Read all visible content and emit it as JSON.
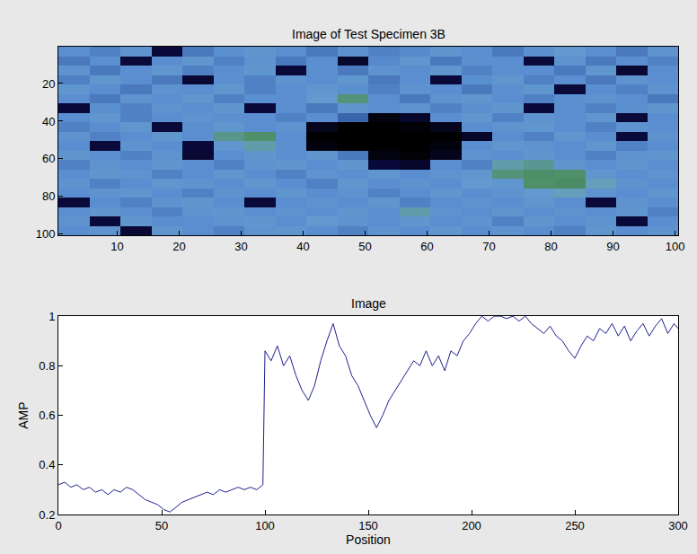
{
  "chart_data": [
    {
      "type": "heatmap",
      "title": "Image of Test Specimen 3B",
      "x": [
        3,
        8,
        13,
        18,
        23,
        28,
        33,
        38,
        43,
        48,
        53,
        58,
        63,
        68,
        73,
        78,
        83,
        88,
        93,
        98
      ],
      "y": [
        3,
        8,
        13,
        18,
        23,
        28,
        33,
        38,
        43,
        48,
        53,
        58,
        63,
        68,
        73,
        78,
        83,
        88,
        93,
        98
      ],
      "z": [
        [
          0.55,
          0.52,
          0.58,
          0.2,
          0.5,
          0.56,
          0.6,
          0.55,
          0.5,
          0.57,
          0.52,
          0.54,
          0.6,
          0.55,
          0.5,
          0.56,
          0.62,
          0.55,
          0.5,
          0.58
        ],
        [
          0.5,
          0.56,
          0.2,
          0.55,
          0.6,
          0.52,
          0.58,
          0.5,
          0.55,
          0.15,
          0.54,
          0.6,
          0.5,
          0.56,
          0.55,
          0.2,
          0.58,
          0.5,
          0.56,
          0.52
        ],
        [
          0.58,
          0.5,
          0.55,
          0.6,
          0.52,
          0.55,
          0.6,
          0.2,
          0.56,
          0.5,
          0.58,
          0.55,
          0.6,
          0.52,
          0.56,
          0.55,
          0.5,
          0.6,
          0.18,
          0.55
        ],
        [
          0.52,
          0.6,
          0.55,
          0.5,
          0.18,
          0.56,
          0.52,
          0.58,
          0.55,
          0.6,
          0.5,
          0.55,
          0.2,
          0.56,
          0.6,
          0.52,
          0.55,
          0.5,
          0.58,
          0.55
        ],
        [
          0.6,
          0.55,
          0.5,
          0.58,
          0.55,
          0.6,
          0.52,
          0.55,
          0.6,
          0.56,
          0.52,
          0.58,
          0.55,
          0.5,
          0.56,
          0.6,
          0.2,
          0.55,
          0.52,
          0.58
        ],
        [
          0.55,
          0.5,
          0.58,
          0.55,
          0.6,
          0.52,
          0.56,
          0.55,
          0.62,
          0.78,
          0.55,
          0.5,
          0.58,
          0.6,
          0.55,
          0.52,
          0.56,
          0.58,
          0.55,
          0.5
        ],
        [
          0.2,
          0.56,
          0.52,
          0.58,
          0.55,
          0.6,
          0.2,
          0.55,
          0.5,
          0.6,
          0.55,
          0.58,
          0.52,
          0.56,
          0.6,
          0.2,
          0.55,
          0.52,
          0.56,
          0.6
        ],
        [
          0.55,
          0.6,
          0.52,
          0.55,
          0.58,
          0.56,
          0.55,
          0.52,
          0.55,
          0.45,
          0.05,
          0.15,
          0.55,
          0.6,
          0.52,
          0.58,
          0.55,
          0.6,
          0.2,
          0.55
        ],
        [
          0.52,
          0.55,
          0.6,
          0.2,
          0.56,
          0.6,
          0.55,
          0.58,
          0.1,
          0.0,
          0.0,
          0.02,
          0.1,
          0.55,
          0.58,
          0.6,
          0.55,
          0.52,
          0.58,
          0.55
        ],
        [
          0.58,
          0.52,
          0.55,
          0.6,
          0.55,
          0.76,
          0.8,
          0.55,
          0.0,
          0.0,
          0.0,
          0.0,
          0.0,
          0.15,
          0.55,
          0.52,
          0.6,
          0.55,
          0.2,
          0.58
        ],
        [
          0.55,
          0.2,
          0.58,
          0.55,
          0.2,
          0.6,
          0.72,
          0.56,
          0.05,
          0.0,
          0.0,
          0.0,
          0.05,
          0.55,
          0.6,
          0.58,
          0.55,
          0.6,
          0.52,
          0.55
        ],
        [
          0.6,
          0.55,
          0.52,
          0.58,
          0.18,
          0.55,
          0.6,
          0.55,
          0.6,
          0.5,
          0.05,
          0.02,
          0.1,
          0.58,
          0.55,
          0.6,
          0.55,
          0.52,
          0.58,
          0.6
        ],
        [
          0.52,
          0.58,
          0.55,
          0.6,
          0.55,
          0.52,
          0.58,
          0.6,
          0.55,
          0.6,
          0.2,
          0.15,
          0.55,
          0.52,
          0.72,
          0.75,
          0.6,
          0.55,
          0.6,
          0.55
        ],
        [
          0.55,
          0.6,
          0.58,
          0.52,
          0.55,
          0.6,
          0.55,
          0.52,
          0.58,
          0.55,
          0.6,
          0.55,
          0.58,
          0.6,
          0.78,
          0.82,
          0.8,
          0.6,
          0.55,
          0.58
        ],
        [
          0.58,
          0.52,
          0.55,
          0.6,
          0.58,
          0.55,
          0.6,
          0.55,
          0.52,
          0.6,
          0.55,
          0.58,
          0.55,
          0.62,
          0.6,
          0.8,
          0.84,
          0.7,
          0.58,
          0.55
        ],
        [
          0.55,
          0.58,
          0.6,
          0.55,
          0.52,
          0.58,
          0.55,
          0.6,
          0.55,
          0.58,
          0.52,
          0.55,
          0.6,
          0.55,
          0.58,
          0.62,
          0.7,
          0.58,
          0.55,
          0.6
        ],
        [
          0.2,
          0.55,
          0.52,
          0.58,
          0.6,
          0.55,
          0.2,
          0.55,
          0.58,
          0.55,
          0.6,
          0.52,
          0.55,
          0.58,
          0.55,
          0.6,
          0.55,
          0.2,
          0.58,
          0.55
        ],
        [
          0.55,
          0.6,
          0.55,
          0.52,
          0.58,
          0.6,
          0.55,
          0.58,
          0.55,
          0.6,
          0.55,
          0.72,
          0.58,
          0.55,
          0.6,
          0.55,
          0.58,
          0.55,
          0.6,
          0.52
        ],
        [
          0.58,
          0.2,
          0.6,
          0.55,
          0.55,
          0.58,
          0.6,
          0.55,
          0.62,
          0.58,
          0.55,
          0.6,
          0.55,
          0.58,
          0.52,
          0.6,
          0.55,
          0.58,
          0.2,
          0.55
        ],
        [
          0.55,
          0.58,
          0.18,
          0.6,
          0.55,
          0.52,
          0.58,
          0.6,
          0.55,
          0.52,
          0.58,
          0.55,
          0.6,
          0.55,
          0.58,
          0.55,
          0.52,
          0.6,
          0.55,
          0.58
        ]
      ],
      "zlim": [
        0,
        1
      ],
      "xlim": [
        0.5,
        100.5
      ],
      "ylim": [
        0.5,
        100.5
      ],
      "xticks": [
        10,
        20,
        30,
        40,
        50,
        60,
        70,
        80,
        90,
        100
      ],
      "yticks": [
        20,
        40,
        60,
        80,
        100
      ]
    },
    {
      "type": "line",
      "title": "Image",
      "x_label": "Position",
      "y_label": "AMP",
      "color": "#1f1f8f",
      "x": [
        0,
        3,
        6,
        9,
        12,
        15,
        18,
        21,
        24,
        27,
        30,
        33,
        36,
        39,
        42,
        45,
        48,
        51,
        54,
        57,
        60,
        63,
        66,
        69,
        72,
        75,
        78,
        81,
        84,
        87,
        90,
        93,
        96,
        99,
        100,
        103,
        106,
        109,
        112,
        115,
        118,
        121,
        124,
        127,
        130,
        133,
        136,
        139,
        142,
        145,
        148,
        151,
        154,
        157,
        160,
        163,
        166,
        169,
        172,
        175,
        178,
        181,
        184,
        187,
        190,
        193,
        196,
        199,
        202,
        205,
        208,
        211,
        214,
        217,
        220,
        223,
        226,
        229,
        232,
        235,
        238,
        241,
        244,
        247,
        250,
        253,
        256,
        259,
        262,
        265,
        268,
        271,
        274,
        277,
        280,
        283,
        286,
        289,
        292,
        295,
        298,
        300
      ],
      "values": [
        0.32,
        0.33,
        0.31,
        0.32,
        0.3,
        0.31,
        0.29,
        0.3,
        0.28,
        0.3,
        0.29,
        0.31,
        0.3,
        0.28,
        0.26,
        0.25,
        0.24,
        0.22,
        0.21,
        0.23,
        0.25,
        0.26,
        0.27,
        0.28,
        0.29,
        0.28,
        0.3,
        0.29,
        0.3,
        0.31,
        0.3,
        0.31,
        0.3,
        0.32,
        0.86,
        0.82,
        0.88,
        0.8,
        0.84,
        0.76,
        0.7,
        0.66,
        0.72,
        0.82,
        0.9,
        0.97,
        0.88,
        0.84,
        0.76,
        0.72,
        0.66,
        0.6,
        0.55,
        0.6,
        0.66,
        0.7,
        0.74,
        0.78,
        0.82,
        0.8,
        0.86,
        0.8,
        0.84,
        0.78,
        0.86,
        0.84,
        0.9,
        0.93,
        0.97,
        1.0,
        0.98,
        1.0,
        1.0,
        0.99,
        1.0,
        0.98,
        1.0,
        0.97,
        0.95,
        0.93,
        0.96,
        0.92,
        0.9,
        0.86,
        0.83,
        0.88,
        0.92,
        0.9,
        0.95,
        0.93,
        0.97,
        0.92,
        0.96,
        0.9,
        0.94,
        0.97,
        0.92,
        0.96,
        0.99,
        0.93,
        0.97,
        0.95
      ],
      "xlim": [
        0,
        300
      ],
      "ylim": [
        0.2,
        1
      ],
      "xticks": [
        0,
        50,
        100,
        150,
        200,
        250,
        300
      ],
      "yticks": [
        0.2,
        0.4,
        0.6,
        0.8,
        1
      ]
    }
  ]
}
